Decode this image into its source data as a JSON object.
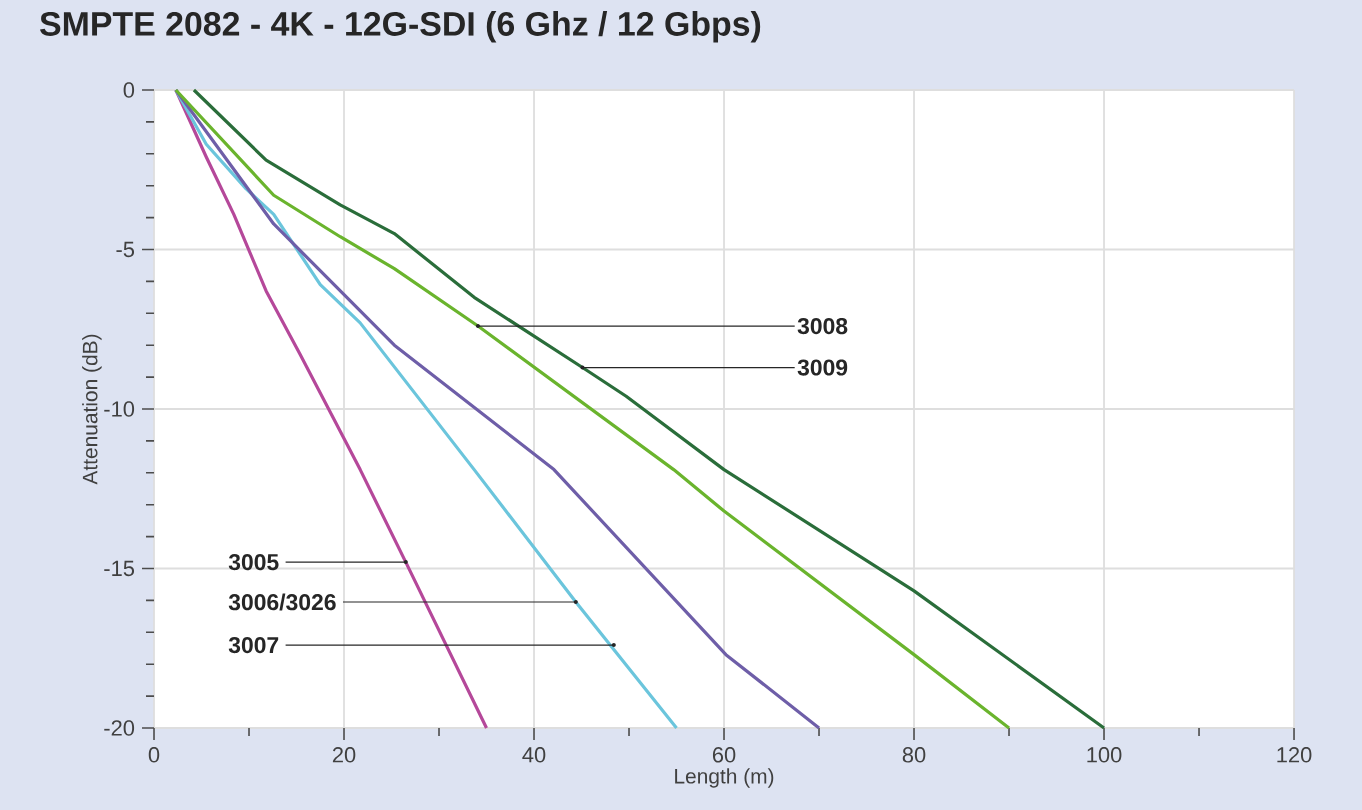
{
  "chart_data": {
    "type": "line",
    "title": "SMPTE 2082 - 4K - 12G-SDI (6 Ghz / 12 Gbps)",
    "xlabel": "Length (m)",
    "ylabel": "Attenuation (dB)",
    "xlim": [
      0,
      120
    ],
    "ylim": [
      -20,
      0
    ],
    "xticks": [
      0,
      {
        "value": 10,
        "label": null
      },
      20,
      {
        "value": 30,
        "label": null
      },
      40,
      {
        "value": 50,
        "label": null
      },
      60,
      {
        "value": 70,
        "label": null
      },
      80,
      {
        "value": 90,
        "label": null
      },
      100,
      {
        "value": 110,
        "label": null
      },
      120
    ],
    "yticks": [
      -20,
      {
        "value": -19,
        "label": null
      },
      {
        "value": -18,
        "label": null
      },
      {
        "value": -17,
        "label": null
      },
      {
        "value": -16,
        "label": null
      },
      -15,
      {
        "value": -14,
        "label": null
      },
      {
        "value": -13,
        "label": null
      },
      {
        "value": -12,
        "label": null
      },
      {
        "value": -11,
        "label": null
      },
      -10,
      {
        "value": -9,
        "label": null
      },
      {
        "value": -8,
        "label": null
      },
      {
        "value": -7,
        "label": null
      },
      {
        "value": -6,
        "label": null
      },
      -5,
      {
        "value": -4,
        "label": null
      },
      {
        "value": -3,
        "label": null
      },
      {
        "value": -2,
        "label": null
      },
      {
        "value": -1,
        "label": null
      },
      0
    ],
    "grid": true,
    "marker": "none",
    "line_style": "solid",
    "series": [
      {
        "color": "#b5489a",
        "x": [
          2.3,
          5.5,
          8.4,
          11.8,
          15.4,
          21.7,
          26.5,
          35
        ],
        "values": [
          0,
          -2.1,
          -3.9,
          -6.3,
          -8.3,
          -11.9,
          -14.8,
          -20
        ]
      },
      {
        "color": "#6bc5dc",
        "x": [
          2.3,
          5.5,
          9.7,
          12.6,
          17.5,
          21.7,
          33.7,
          44.4,
          55
        ],
        "values": [
          0,
          -1.7,
          -3.1,
          -3.9,
          -6.1,
          -7.3,
          -11.9,
          -16.05,
          -20
        ]
      },
      {
        "color": "#6e5ea8",
        "x": [
          2.3,
          12.6,
          25.3,
          42.1,
          60.2,
          70
        ],
        "values": [
          0,
          -4.2,
          -8.0,
          -11.9,
          -17.7,
          -20
        ]
      },
      {
        "color": "#6ab42d",
        "x": [
          2.3,
          12.6,
          19.6,
          25.3,
          34.1,
          54.7,
          60,
          80,
          90
        ],
        "values": [
          0,
          -3.3,
          -4.6,
          -5.6,
          -7.4,
          -11.9,
          -13.2,
          -17.7,
          -20
        ]
      },
      {
        "color": "#2a6d3a",
        "x": [
          4.2,
          11.8,
          19.6,
          25.3,
          33.7,
          45.1,
          49.7,
          60,
          80,
          100
        ],
        "values": [
          0,
          -2.2,
          -3.6,
          -4.5,
          -6.5,
          -8.7,
          -9.6,
          -11.9,
          -15.7,
          -20
        ]
      }
    ],
    "annotations": [
      {
        "text": "3008",
        "x": 34.1,
        "y": -7.4
      },
      {
        "text": "3009",
        "x": 45.1,
        "y": -8.7
      },
      {
        "text": "3005",
        "x": 26.5,
        "y": -14.8
      },
      {
        "text": "3006/3026",
        "x": 44.4,
        "y": -16.05
      },
      {
        "text": "3007",
        "x": 48.4,
        "y": -17.4
      }
    ]
  }
}
